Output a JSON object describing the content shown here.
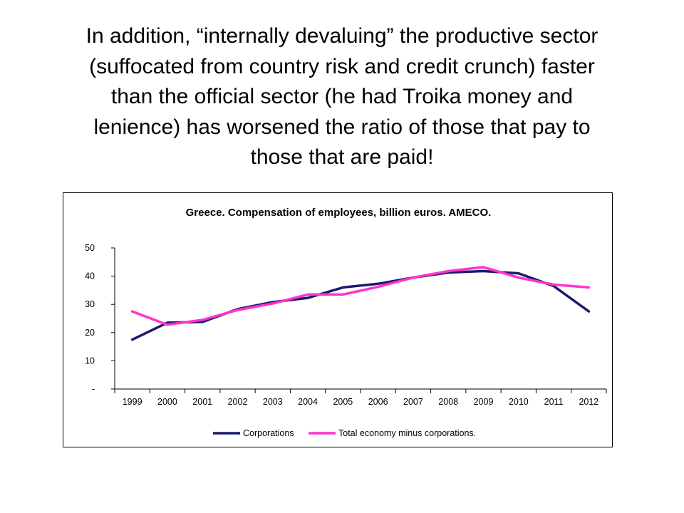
{
  "slide": {
    "title_lines": [
      "In addition, “internally devaluing” the productive sector",
      "(suffocated from country risk and credit crunch) faster",
      "than the official sector (he had Troika money and",
      "lenience) has worsened the ratio of those that pay to",
      "those that are paid!"
    ]
  },
  "chart_data": {
    "type": "line",
    "title": "Greece. Compensation of employees, billion euros. AMECO.",
    "xlabel": "",
    "ylabel": "",
    "categories": [
      "1999",
      "2000",
      "2001",
      "2002",
      "2003",
      "2004",
      "2005",
      "2006",
      "2007",
      "2008",
      "2009",
      "2010",
      "2011",
      "2012"
    ],
    "y_tick_labels": [
      "-",
      "10",
      "20",
      "30",
      "40",
      "50"
    ],
    "ylim": [
      0,
      50
    ],
    "grid": false,
    "legend_position": "bottom",
    "series": [
      {
        "name": "Corporations",
        "color": "#1a1a6e",
        "values": [
          17.5,
          23.5,
          23.8,
          28.3,
          30.8,
          32.3,
          36.0,
          37.3,
          39.5,
          41.3,
          41.8,
          41.0,
          36.5,
          27.5
        ]
      },
      {
        "name": "Total economy minus corporations.",
        "color": "#ff33cc",
        "values": [
          27.5,
          22.8,
          24.5,
          28.0,
          30.3,
          33.5,
          33.5,
          36.2,
          39.5,
          41.8,
          43.2,
          39.5,
          37.0,
          36.0
        ]
      }
    ]
  }
}
